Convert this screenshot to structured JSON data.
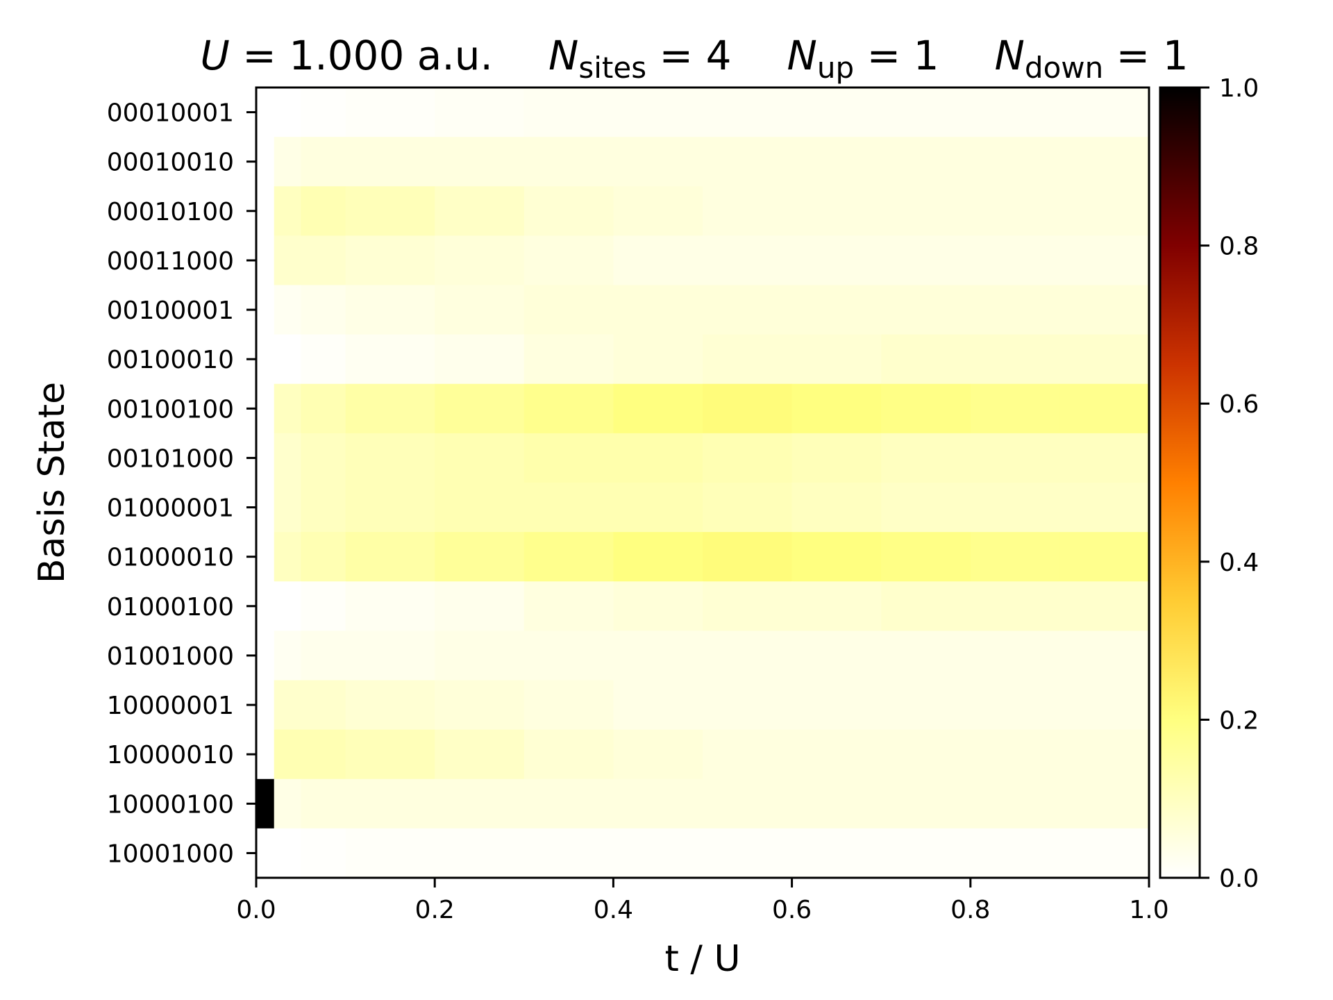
{
  "chart_data": {
    "type": "heatmap",
    "title": {
      "u_symbol": "U",
      "u_value": " = 1.000 a.u.",
      "n_symbol": "N",
      "sites_sub": "sites",
      "sites_value": " = 4",
      "up_sub": "up",
      "up_value": " = 1",
      "down_sub": "down",
      "down_value": " = 1"
    },
    "xlabel": "t / U",
    "ylabel": "Basis State",
    "xlim": [
      0.0,
      1.0
    ],
    "xticks": [
      "0.0",
      "0.2",
      "0.4",
      "0.6",
      "0.8",
      "1.0"
    ],
    "colorbar": {
      "range": [
        0.0,
        1.0
      ],
      "ticks": [
        "0.0",
        "0.2",
        "0.4",
        "0.6",
        "0.8",
        "1.0"
      ],
      "colormap": "afmhot_r"
    },
    "states": [
      "00010001",
      "00010010",
      "00010100",
      "00011000",
      "00100001",
      "00100010",
      "00100100",
      "00101000",
      "01000001",
      "01000010",
      "01000100",
      "01001000",
      "10000001",
      "10000010",
      "10000100",
      "10001000"
    ],
    "x": [
      0.0,
      0.02,
      0.05,
      0.1,
      0.2,
      0.3,
      0.4,
      0.5,
      0.6,
      0.7,
      0.8,
      0.9,
      1.0
    ],
    "values": [
      [
        0.0,
        0.0,
        0.005,
        0.01,
        0.015,
        0.02,
        0.02,
        0.02,
        0.02,
        0.02,
        0.02,
        0.02
      ],
      [
        0.0,
        0.04,
        0.05,
        0.05,
        0.05,
        0.05,
        0.05,
        0.05,
        0.05,
        0.05,
        0.05,
        0.05
      ],
      [
        0.0,
        0.1,
        0.12,
        0.11,
        0.09,
        0.07,
        0.06,
        0.05,
        0.05,
        0.05,
        0.05,
        0.05
      ],
      [
        0.0,
        0.08,
        0.08,
        0.07,
        0.06,
        0.05,
        0.04,
        0.04,
        0.04,
        0.04,
        0.04,
        0.04
      ],
      [
        0.0,
        0.02,
        0.03,
        0.04,
        0.05,
        0.06,
        0.06,
        0.06,
        0.06,
        0.06,
        0.06,
        0.06
      ],
      [
        0.0,
        0.0,
        0.01,
        0.02,
        0.03,
        0.05,
        0.06,
        0.07,
        0.07,
        0.08,
        0.08,
        0.08
      ],
      [
        0.0,
        0.1,
        0.12,
        0.14,
        0.16,
        0.18,
        0.2,
        0.21,
        0.2,
        0.19,
        0.18,
        0.18
      ],
      [
        0.0,
        0.08,
        0.1,
        0.11,
        0.12,
        0.13,
        0.13,
        0.12,
        0.11,
        0.1,
        0.1,
        0.1
      ],
      [
        0.0,
        0.08,
        0.1,
        0.11,
        0.12,
        0.12,
        0.12,
        0.11,
        0.1,
        0.09,
        0.09,
        0.09
      ],
      [
        0.0,
        0.1,
        0.12,
        0.14,
        0.16,
        0.18,
        0.2,
        0.21,
        0.2,
        0.19,
        0.18,
        0.18
      ],
      [
        0.0,
        0.0,
        0.01,
        0.02,
        0.03,
        0.05,
        0.06,
        0.07,
        0.07,
        0.08,
        0.08,
        0.08
      ],
      [
        0.0,
        0.02,
        0.03,
        0.03,
        0.04,
        0.04,
        0.04,
        0.04,
        0.04,
        0.04,
        0.04,
        0.04
      ],
      [
        0.0,
        0.08,
        0.08,
        0.07,
        0.06,
        0.05,
        0.04,
        0.04,
        0.04,
        0.04,
        0.04,
        0.04
      ],
      [
        0.0,
        0.12,
        0.12,
        0.11,
        0.09,
        0.07,
        0.06,
        0.05,
        0.05,
        0.05,
        0.05,
        0.05
      ],
      [
        1.0,
        0.04,
        0.05,
        0.05,
        0.05,
        0.05,
        0.05,
        0.05,
        0.05,
        0.05,
        0.05,
        0.05
      ],
      [
        0.0,
        0.0,
        0.005,
        0.01,
        0.01,
        0.01,
        0.01,
        0.01,
        0.01,
        0.01,
        0.01,
        0.01
      ]
    ]
  }
}
